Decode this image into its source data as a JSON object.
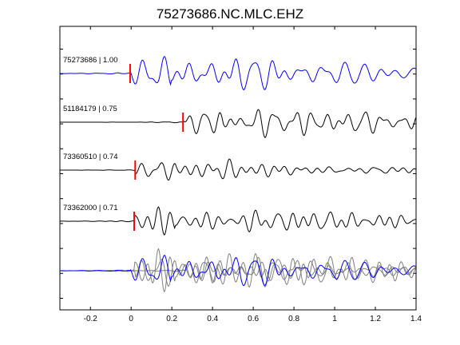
{
  "chart_data": {
    "type": "line",
    "title": "75273686.NC.MLC.EHZ",
    "xlabel": "",
    "ylabel": "",
    "xlim": [
      -0.35,
      1.4
    ],
    "xticks": [
      -0.2,
      0,
      0.2,
      0.4,
      0.6,
      0.8,
      1,
      1.2,
      1.4
    ],
    "xtick_labels": [
      "-0.2",
      "0",
      "0.2",
      "0.4",
      "0.6",
      "0.8",
      "1",
      "1.2",
      "1.4"
    ],
    "grid": false,
    "colors": {
      "reference": "#0000ff",
      "other": "#000000",
      "pick": "#ff0000",
      "overlay_other": "#808080"
    },
    "traces": [
      {
        "label": "75273686 | 1.00",
        "id": "75273686",
        "correlation": 1.0,
        "pick_time": -0.005,
        "color": "#0000ff",
        "gain": 22,
        "seed": 11
      },
      {
        "label": "51184179 | 0.75",
        "id": "51184179",
        "correlation": 0.75,
        "pick_time": 0.255,
        "color": "#000000",
        "gain": 19,
        "seed": 23
      },
      {
        "label": "73360510 | 0.74",
        "id": "73360510",
        "correlation": 0.74,
        "pick_time": 0.02,
        "color": "#000000",
        "gain": 13,
        "seed": 37
      },
      {
        "label": "73362000 | 0.71",
        "id": "73362000",
        "correlation": 0.71,
        "pick_time": 0.015,
        "color": "#000000",
        "gain": 13,
        "seed": 41
      }
    ],
    "overlay": {
      "description": "all traces overlaid",
      "reference_color": "#0000ff",
      "others_color": "#808080"
    }
  }
}
